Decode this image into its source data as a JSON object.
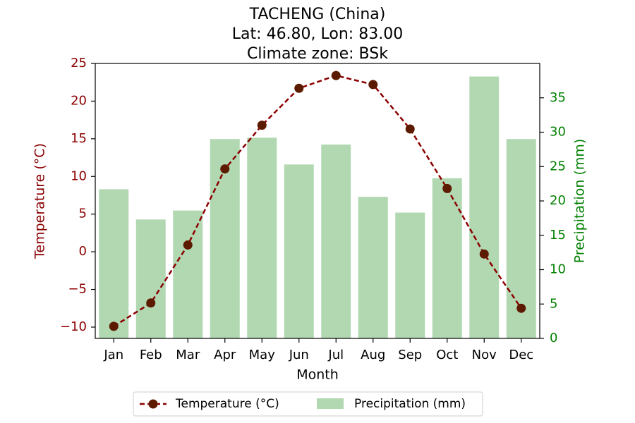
{
  "chart_data": {
    "type": "bar+line",
    "title_lines": [
      "TACHENG (China)",
      "Lat: 46.80, Lon: 83.00",
      "Climate zone: BSk"
    ],
    "xlabel": "Month",
    "categories": [
      "Jan",
      "Feb",
      "Mar",
      "Apr",
      "May",
      "Jun",
      "Jul",
      "Aug",
      "Sep",
      "Oct",
      "Nov",
      "Dec"
    ],
    "temperature": {
      "name": "Temperature (°C)",
      "axis_label": "Temperature (°C)",
      "values": [
        -9.9,
        -6.8,
        0.9,
        11.0,
        16.8,
        21.7,
        23.4,
        22.2,
        16.3,
        8.4,
        -0.3,
        -7.5
      ],
      "ylim": [
        -11.5,
        25
      ],
      "ticks": [
        -10,
        -5,
        0,
        5,
        10,
        15,
        20,
        25
      ],
      "tick_labels": [
        "−10",
        "−5",
        "0",
        "5",
        "10",
        "15",
        "20",
        "25"
      ]
    },
    "precipitation": {
      "name": "Precipitation (mm)",
      "axis_label": "Precipitation (mm)",
      "values": [
        21.7,
        17.3,
        18.6,
        29.0,
        29.2,
        25.3,
        28.2,
        20.6,
        18.3,
        23.3,
        38.1,
        29.0
      ],
      "ylim": [
        0,
        40
      ],
      "ticks": [
        0,
        5,
        10,
        15,
        20,
        25,
        30,
        35
      ],
      "tick_labels": [
        "0",
        "5",
        "10",
        "15",
        "20",
        "25",
        "30",
        "35"
      ]
    },
    "colors": {
      "temperature_line": "#8b0000",
      "temperature_marker": "#5c1a00",
      "temperature_axis": "#8b0000",
      "precipitation_bar": "#b2d8b2",
      "precipitation_axis": "#008000"
    },
    "legend_placement": "bottom-center",
    "grid": false
  }
}
